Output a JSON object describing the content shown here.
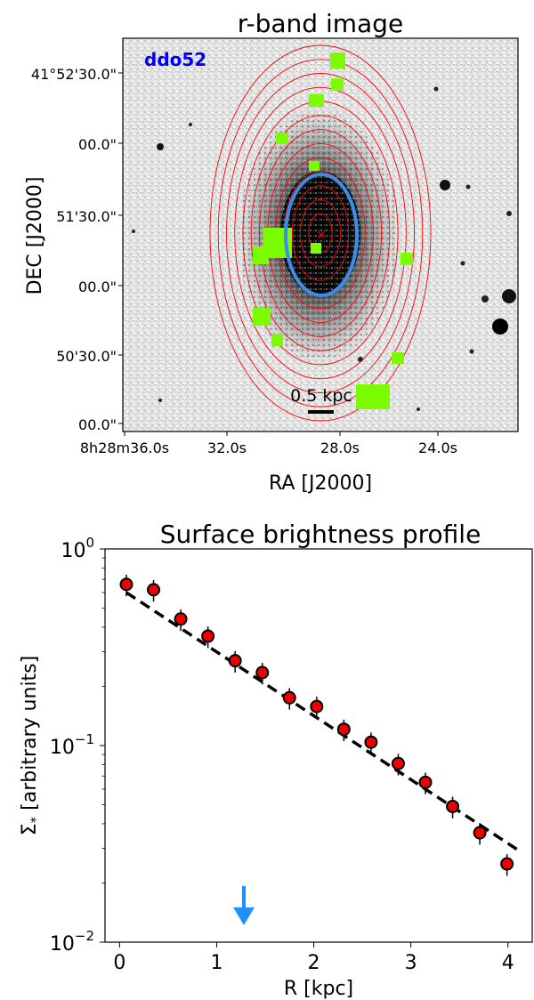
{
  "chart_data": [
    {
      "type": "image",
      "title": "r-band image",
      "label": "ddo52",
      "xlabel": "RA [J2000]",
      "ylabel": "DEC [J2000]",
      "x_tick_labels": [
        "8h28m36.0s",
        "32.0s",
        "28.0s",
        "24.0s"
      ],
      "y_tick_labels": [
        "41°52'30.0\"",
        "00.0\"",
        "51'30.0\"",
        "00.0\"",
        "50'30.0\"",
        "00.0\""
      ],
      "scalebar_label": "0.5 kpc",
      "n_red_contours": 13,
      "colors": {
        "label": "#0000ff",
        "contours": "#ff0000",
        "masks": "#7cfc00",
        "ellipse": "#3a8ee6",
        "center_marker": "#ff0000"
      }
    },
    {
      "type": "scatter",
      "title": "Surface brightness profile",
      "xlabel": "R [kpc]",
      "ylabel": "Σ$_*$ [arbitrary units]",
      "ylabel_display": "Σ",
      "ylabel_sub": "*",
      "ylabel_rest": " [arbitrary units]",
      "xlim": [
        -0.15,
        4.25
      ],
      "ylim": [
        0.01,
        1.0
      ],
      "yscale": "log",
      "x_ticks": [
        0,
        1,
        2,
        3,
        4
      ],
      "x_tick_labels": [
        "0",
        "1",
        "2",
        "3",
        "4"
      ],
      "y_ticks": [
        0.01,
        0.1,
        1.0
      ],
      "y_tick_labels": [
        {
          "base": "10",
          "exp": "−2"
        },
        {
          "base": "10",
          "exp": "−1"
        },
        {
          "base": "10",
          "exp": "0"
        }
      ],
      "points": {
        "x": [
          0.07,
          0.35,
          0.63,
          0.91,
          1.19,
          1.47,
          1.75,
          2.03,
          2.31,
          2.59,
          2.87,
          3.15,
          3.43,
          3.71,
          3.99
        ],
        "y": [
          0.66,
          0.62,
          0.44,
          0.36,
          0.27,
          0.235,
          0.175,
          0.158,
          0.121,
          0.104,
          0.081,
          0.065,
          0.049,
          0.036,
          0.025
        ],
        "color": "#ee0000",
        "edgecolor": "#000000"
      },
      "fit_line": {
        "x": [
          0.07,
          4.1
        ],
        "y": [
          0.6,
          0.0295
        ],
        "style": "dashed",
        "color": "#000000"
      },
      "arrow": {
        "x": 1.28,
        "y_top": 0.0193,
        "y_bottom": 0.0122,
        "color": "#1e90ff"
      }
    }
  ]
}
